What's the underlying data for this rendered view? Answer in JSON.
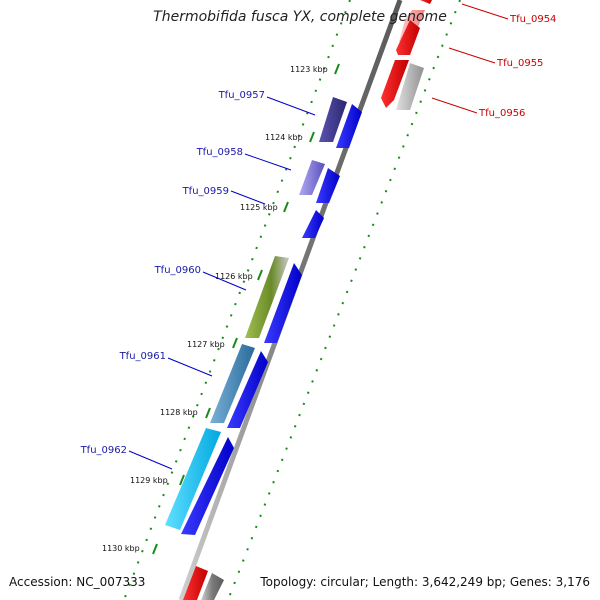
{
  "title": "Thermobifida fusca YX, complete genome",
  "footer": {
    "accession": "Accession: NC_007333",
    "topology": "Topology: circular; Length: 3,642,249 bp; Genes: 3,176"
  },
  "ticks": [
    "1123 kbp",
    "1124 kbp",
    "1125 kbp",
    "1126 kbp",
    "1127 kbp",
    "1128 kbp",
    "1129 kbp",
    "1130 kbp"
  ],
  "genes_left": [
    "Tfu_0957",
    "Tfu_0958",
    "Tfu_0959",
    "Tfu_0960",
    "Tfu_0961",
    "Tfu_0962"
  ],
  "genes_right": [
    "Tfu_0954",
    "Tfu_0955",
    "Tfu_0956"
  ],
  "colors": {
    "left_label": "#1a1aa8",
    "right_label": "#cc0000",
    "forward_strand": "#0000ee",
    "reverse_strand": "#ee0000",
    "tick_dots": "#1a8a1a",
    "backbone": "#8a8a8a"
  }
}
